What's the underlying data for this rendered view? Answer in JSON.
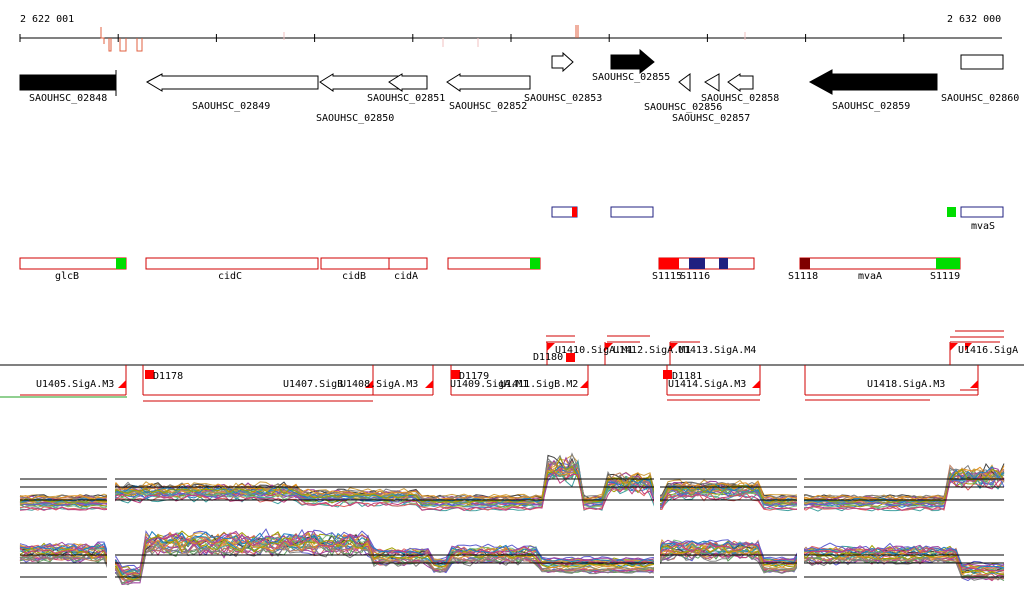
{
  "coords": {
    "start": "2 622 001",
    "end": "2 632 000"
  },
  "genes": [
    {
      "id": "SAOUHSC_02848"
    },
    {
      "id": "SAOUHSC_02849"
    },
    {
      "id": "SAOUHSC_02850"
    },
    {
      "id": "SAOUHSC_02851"
    },
    {
      "id": "SAOUHSC_02852"
    },
    {
      "id": "SAOUHSC_02853"
    },
    {
      "id": "SAOUHSC_02855"
    },
    {
      "id": "SAOUHSC_02856"
    },
    {
      "id": "SAOUHSC_02857"
    },
    {
      "id": "SAOUHSC_02858"
    },
    {
      "id": "SAOUHSC_02859"
    },
    {
      "id": "SAOUHSC_02860"
    }
  ],
  "annotations": [
    {
      "name": "glcB"
    },
    {
      "name": "cidC"
    },
    {
      "name": "cidB"
    },
    {
      "name": "cidA"
    },
    {
      "name": "mvaA"
    },
    {
      "name": "mvaS"
    }
  ],
  "segments": [
    {
      "id": "S1115"
    },
    {
      "id": "S1116"
    },
    {
      "id": "S1118"
    },
    {
      "id": "S1119"
    }
  ],
  "features": [
    {
      "id": "U1405.SigA.M3"
    },
    {
      "id": "D1178"
    },
    {
      "id": "U1407.SigB"
    },
    {
      "id": "U1408.SigA.M3"
    },
    {
      "id": "D1179"
    },
    {
      "id": "U1409.SigA.M1"
    },
    {
      "id": "U1411.SigB.M2"
    },
    {
      "id": "D1180"
    },
    {
      "id": "U1410.SigA.M1"
    },
    {
      "id": "U1412.SigA.M1"
    },
    {
      "id": "U1413.SigA.M4"
    },
    {
      "id": "D1181"
    },
    {
      "id": "U1414.SigA.M3"
    },
    {
      "id": "U1416.SigA"
    },
    {
      "id": "U1418.SigA.M3"
    }
  ],
  "colors": {
    "forward_box": "#d00000",
    "reverse_box": "#202080",
    "green": "#00dd00",
    "dark_red": "#800000",
    "gene_filled": "#000000"
  }
}
